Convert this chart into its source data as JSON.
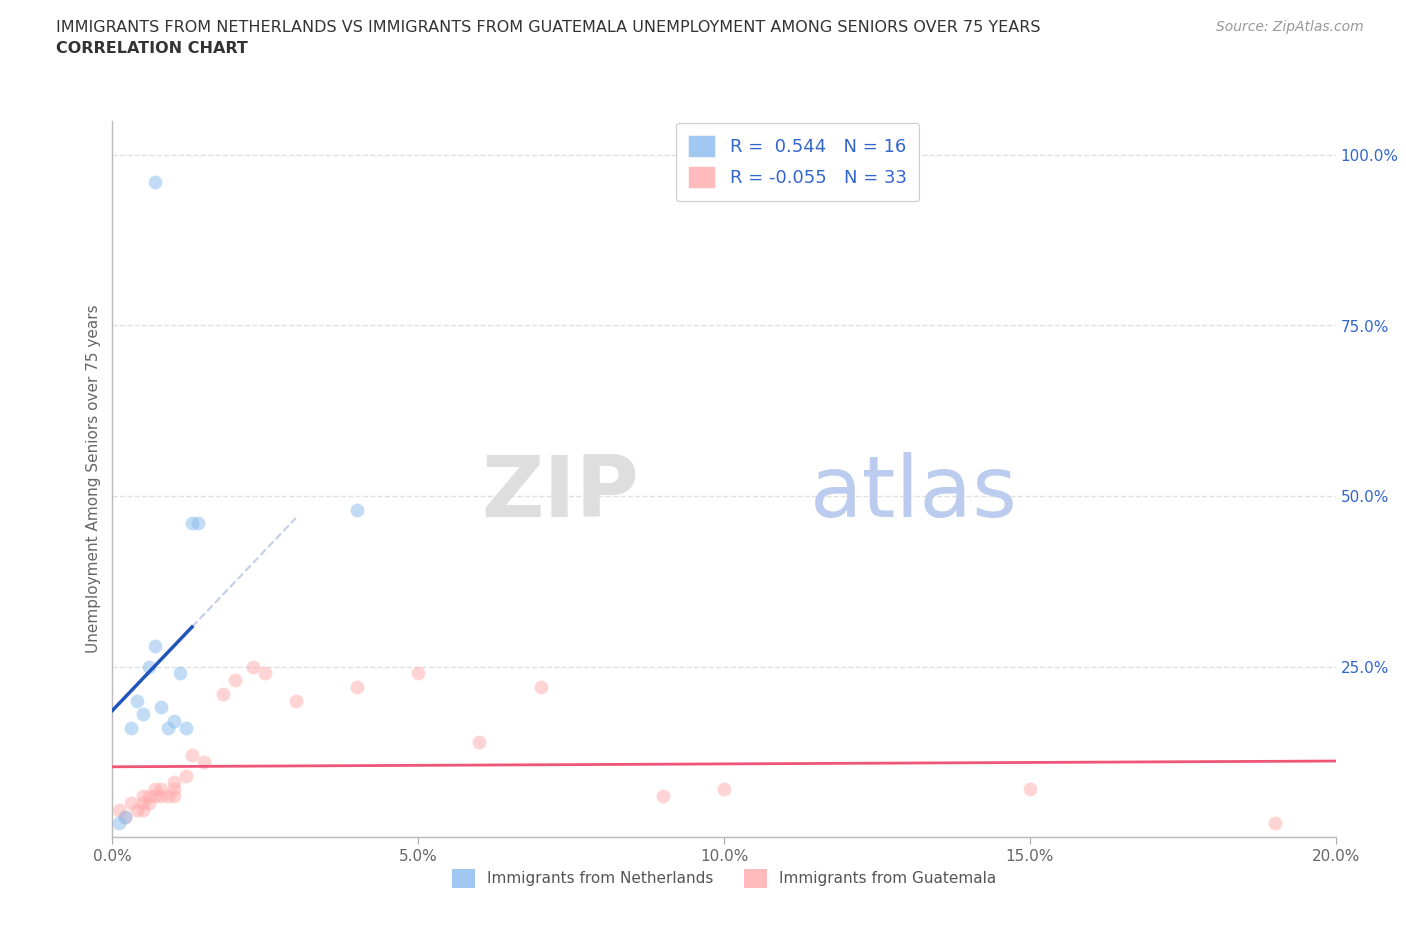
{
  "title_line1": "IMMIGRANTS FROM NETHERLANDS VS IMMIGRANTS FROM GUATEMALA UNEMPLOYMENT AMONG SENIORS OVER 75 YEARS",
  "title_line2": "CORRELATION CHART",
  "source": "Source: ZipAtlas.com",
  "ylabel": "Unemployment Among Seniors over 75 years",
  "xlim": [
    0.0,
    0.2
  ],
  "ylim": [
    0.0,
    1.05
  ],
  "xticks": [
    0.0,
    0.05,
    0.1,
    0.15,
    0.2
  ],
  "yticks": [
    0.0,
    0.25,
    0.5,
    0.75,
    1.0
  ],
  "xtick_labels": [
    "0.0%",
    "5.0%",
    "10.0%",
    "15.0%",
    "20.0%"
  ],
  "ytick_labels_right": [
    "",
    "25.0%",
    "50.0%",
    "75.0%",
    "100.0%"
  ],
  "netherlands_color": "#88BBEE",
  "guatemala_color": "#FFAAAA",
  "netherlands_line_color": "#2255BB",
  "guatemala_line_color": "#EE5577",
  "netherlands_R": 0.544,
  "netherlands_N": 16,
  "guatemala_R": -0.055,
  "guatemala_N": 33,
  "nl_x": [
    0.001,
    0.002,
    0.003,
    0.004,
    0.005,
    0.006,
    0.007,
    0.008,
    0.009,
    0.01,
    0.011,
    0.012,
    0.013,
    0.014,
    0.04,
    0.007
  ],
  "nl_y": [
    0.02,
    0.03,
    0.16,
    0.2,
    0.18,
    0.25,
    0.28,
    0.19,
    0.16,
    0.17,
    0.24,
    0.16,
    0.46,
    0.46,
    0.48,
    0.96
  ],
  "gt_x": [
    0.001,
    0.002,
    0.003,
    0.004,
    0.005,
    0.005,
    0.005,
    0.006,
    0.006,
    0.007,
    0.007,
    0.008,
    0.008,
    0.009,
    0.01,
    0.01,
    0.01,
    0.012,
    0.013,
    0.015,
    0.018,
    0.02,
    0.023,
    0.025,
    0.03,
    0.04,
    0.05,
    0.06,
    0.07,
    0.09,
    0.1,
    0.15,
    0.19
  ],
  "gt_y": [
    0.04,
    0.03,
    0.05,
    0.04,
    0.04,
    0.05,
    0.06,
    0.05,
    0.06,
    0.06,
    0.07,
    0.06,
    0.07,
    0.06,
    0.06,
    0.07,
    0.08,
    0.09,
    0.12,
    0.11,
    0.21,
    0.23,
    0.25,
    0.24,
    0.2,
    0.22,
    0.24,
    0.14,
    0.22,
    0.06,
    0.07,
    0.07,
    0.02
  ],
  "background_color": "#FFFFFF",
  "grid_color": "#E0E0E0",
  "title_color": "#333333",
  "axis_label_color": "#666666",
  "legend_text_color": "#3366CC",
  "bottom_legend_color": "#555555",
  "marker_size": 100,
  "marker_alpha": 0.5
}
